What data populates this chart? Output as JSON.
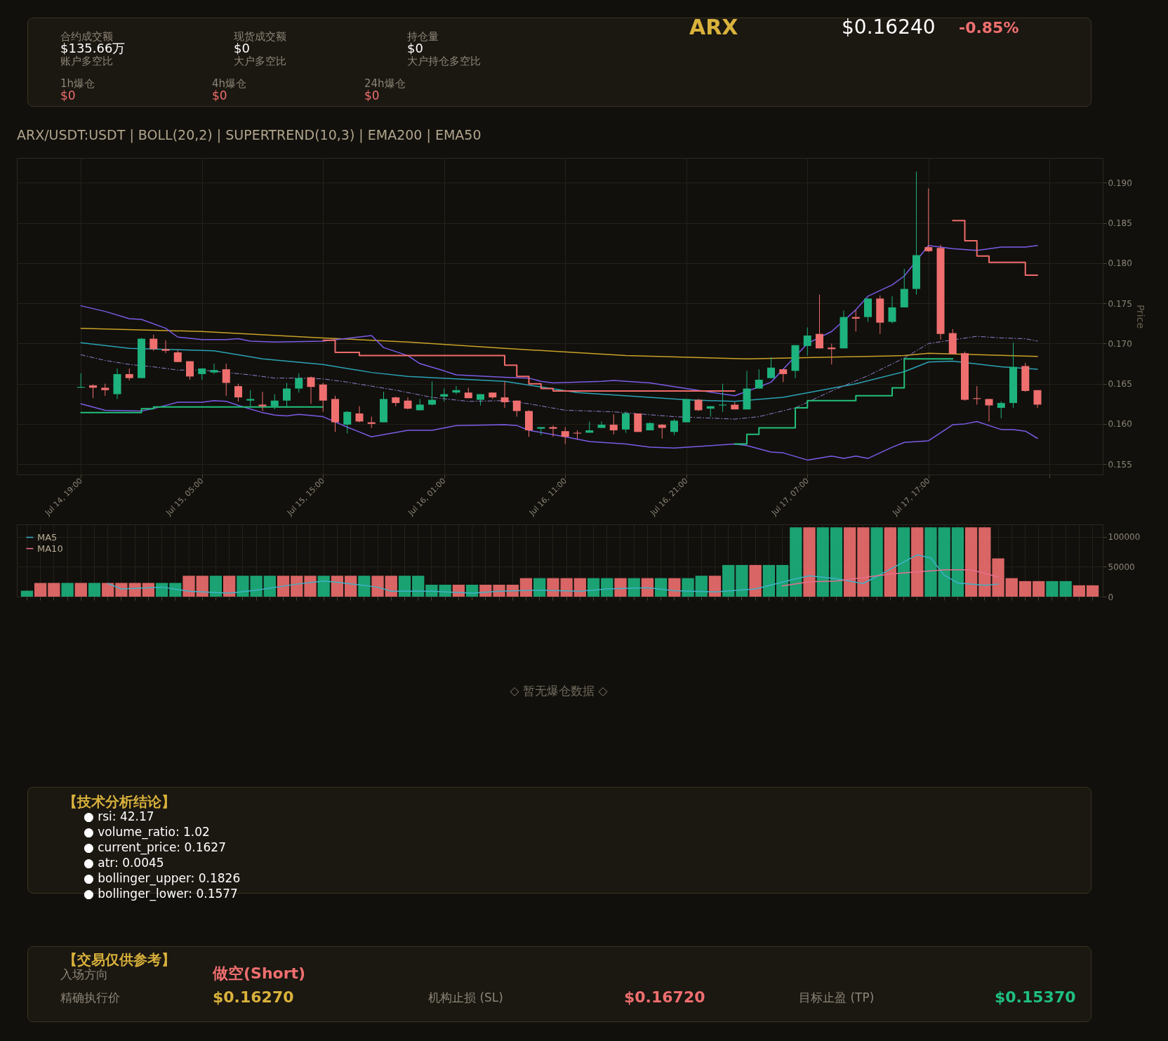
{
  "chart_data": [
    {
      "type": "other",
      "annotations": [
        "合约成交额",
        "$135.66万",
        "现货成交额",
        "$0",
        "持仓量",
        "$0",
        "账户多空比",
        "大户多空比",
        "大户持仓多空比",
        "1h爆仓",
        "$0",
        "4h爆仓",
        "$0",
        "24h爆仓",
        "$0",
        "ARX",
        "$0.16240",
        "-0.85%"
      ]
    },
    {
      "type": "candlestick",
      "title": "ARX/USDT:USDT | BOLL(20,2) | SUPERTREND(10,3) | EMA200 | EMA50",
      "ylabel": "Price",
      "grid": true,
      "x": [
        "--07-14T19:00",
        "--07-14T20:00",
        "--07-14T21:00",
        "--07-14T22:00",
        "--07-14T23:00",
        "--07-15T00:00",
        "--07-15T01:00",
        "--07-15T02:00",
        "--07-15T03:00",
        "--07-15T04:00",
        "--07-15T05:00",
        "--07-15T06:00",
        "--07-15T07:00",
        "--07-15T08:00",
        "--07-15T09:00",
        "--07-15T10:00",
        "--07-15T11:00",
        "--07-15T12:00",
        "--07-15T13:00",
        "--07-15T14:00",
        "--07-15T15:00",
        "--07-15T16:00",
        "--07-15T17:00",
        "--07-15T18:00",
        "--07-15T19:00",
        "--07-15T20:00",
        "--07-15T21:00",
        "--07-15T22:00",
        "--07-15T23:00",
        "--07-16T00:00",
        "--07-16T01:00",
        "--07-16T02:00",
        "--07-16T03:00",
        "--07-16T04:00",
        "--07-16T05:00",
        "--07-16T06:00",
        "--07-16T07:00",
        "--07-16T08:00",
        "--07-16T09:00",
        "--07-16T10:00",
        "--07-16T11:00",
        "--07-16T12:00",
        "--07-16T13:00",
        "--07-16T14:00",
        "--07-16T15:00",
        "--07-16T16:00",
        "--07-16T17:00",
        "--07-16T18:00",
        "--07-16T19:00",
        "--07-16T20:00",
        "--07-16T21:00",
        "--07-16T22:00",
        "--07-16T23:00",
        "--07-17T00:00",
        "--07-17T01:00",
        "--07-17T02:00",
        "--07-17T03:00",
        "--07-17T04:00",
        "--07-17T05:00",
        "--07-17T06:00",
        "--07-17T07:00",
        "--07-17T08:00",
        "--07-17T09:00",
        "--07-17T10:00",
        "--07-17T11:00",
        "--07-17T12:00",
        "--07-17T13:00",
        "--07-17T14:00",
        "--07-17T15:00",
        "--07-17T16:00",
        "--07-17T17:00",
        "--07-17T18:00",
        "--07-17T19:00",
        "--07-17T20:00",
        "--07-17T21:00",
        "--07-17T22:00",
        "--07-17T23:00",
        "--07-18T00:00",
        "--07-18T01:00",
        "--07-18T02:00"
      ],
      "ohlc": [
        [
          0.1645,
          0.1663,
          0.1645,
          0.1646
        ],
        [
          0.1648,
          0.1649,
          0.1632,
          0.1645
        ],
        [
          0.1645,
          0.165,
          0.1635,
          0.1642
        ],
        [
          0.1637,
          0.1669,
          0.1631,
          0.1662
        ],
        [
          0.1662,
          0.1669,
          0.1654,
          0.1657
        ],
        [
          0.1657,
          0.1707,
          0.1657,
          0.1706
        ],
        [
          0.1706,
          0.1711,
          0.1691,
          0.1693
        ],
        [
          0.1693,
          0.1704,
          0.1688,
          0.1691
        ],
        [
          0.1689,
          0.1692,
          0.1677,
          0.1677
        ],
        [
          0.1678,
          0.1678,
          0.1655,
          0.1659
        ],
        [
          0.1662,
          0.1669,
          0.1655,
          0.1669
        ],
        [
          0.1664,
          0.1675,
          0.1662,
          0.1667
        ],
        [
          0.1668,
          0.1675,
          0.1635,
          0.1651
        ],
        [
          0.1647,
          0.165,
          0.1628,
          0.1633
        ],
        [
          0.1629,
          0.1642,
          0.1622,
          0.1631
        ],
        [
          0.1624,
          0.164,
          0.1616,
          0.1622
        ],
        [
          0.1622,
          0.1637,
          0.1618,
          0.1629
        ],
        [
          0.1629,
          0.1651,
          0.162,
          0.1644
        ],
        [
          0.1644,
          0.1663,
          0.1639,
          0.1657
        ],
        [
          0.1658,
          0.1659,
          0.1625,
          0.1646
        ],
        [
          0.1649,
          0.1651,
          0.1615,
          0.1629
        ],
        [
          0.1631,
          0.1635,
          0.159,
          0.1602
        ],
        [
          0.1599,
          0.1616,
          0.1588,
          0.1615
        ],
        [
          0.1613,
          0.1622,
          0.1602,
          0.1603
        ],
        [
          0.1602,
          0.1609,
          0.1595,
          0.16
        ],
        [
          0.1602,
          0.164,
          0.1602,
          0.1631
        ],
        [
          0.1633,
          0.1634,
          0.1622,
          0.1626
        ],
        [
          0.1629,
          0.1633,
          0.1618,
          0.1619
        ],
        [
          0.1617,
          0.1631,
          0.1617,
          0.1624
        ],
        [
          0.1624,
          0.1653,
          0.1623,
          0.163
        ],
        [
          0.1634,
          0.1644,
          0.1628,
          0.1637
        ],
        [
          0.1639,
          0.1647,
          0.1637,
          0.1642
        ],
        [
          0.1639,
          0.1645,
          0.1632,
          0.1632
        ],
        [
          0.163,
          0.1637,
          0.1623,
          0.1637
        ],
        [
          0.1639,
          0.1639,
          0.1631,
          0.1633
        ],
        [
          0.1633,
          0.1653,
          0.162,
          0.1627
        ],
        [
          0.1629,
          0.1629,
          0.1609,
          0.1616
        ],
        [
          0.1616,
          0.1617,
          0.1584,
          0.1592
        ],
        [
          0.1594,
          0.1596,
          0.1586,
          0.1596
        ],
        [
          0.1596,
          0.1598,
          0.1584,
          0.1594
        ],
        [
          0.1591,
          0.1596,
          0.1575,
          0.1584
        ],
        [
          0.1589,
          0.1592,
          0.1581,
          0.1588
        ],
        [
          0.1589,
          0.1603,
          0.1589,
          0.1592
        ],
        [
          0.1595,
          0.1603,
          0.1595,
          0.1599
        ],
        [
          0.1599,
          0.1612,
          0.1587,
          0.1592
        ],
        [
          0.1593,
          0.1615,
          0.1589,
          0.1613
        ],
        [
          0.1613,
          0.1613,
          0.159,
          0.159
        ],
        [
          0.1592,
          0.1602,
          0.1592,
          0.1601
        ],
        [
          0.1599,
          0.16,
          0.1582,
          0.1595
        ],
        [
          0.159,
          0.1606,
          0.1586,
          0.1604
        ],
        [
          0.1602,
          0.1631,
          0.1602,
          0.1631
        ],
        [
          0.163,
          0.1631,
          0.1616,
          0.1617
        ],
        [
          0.1619,
          0.1622,
          0.1609,
          0.1622
        ],
        [
          0.1623,
          0.165,
          0.1615,
          0.1624
        ],
        [
          0.1624,
          0.1627,
          0.1618,
          0.1618
        ],
        [
          0.1618,
          0.1666,
          0.1618,
          0.1644
        ],
        [
          0.1644,
          0.1668,
          0.1644,
          0.1655
        ],
        [
          0.1657,
          0.1683,
          0.1657,
          0.167
        ],
        [
          0.1668,
          0.1668,
          0.1652,
          0.1662
        ],
        [
          0.1666,
          0.1698,
          0.1657,
          0.1698
        ],
        [
          0.1697,
          0.172,
          0.1685,
          0.171
        ],
        [
          0.1712,
          0.1761,
          0.1694,
          0.1694
        ],
        [
          0.1695,
          0.17,
          0.1674,
          0.1693
        ],
        [
          0.1694,
          0.1741,
          0.1694,
          0.1733
        ],
        [
          0.1733,
          0.1742,
          0.1715,
          0.1731
        ],
        [
          0.1733,
          0.1756,
          0.1727,
          0.1756
        ],
        [
          0.1756,
          0.176,
          0.1712,
          0.1726
        ],
        [
          0.1727,
          0.1759,
          0.1725,
          0.1745
        ],
        [
          0.1745,
          0.1793,
          0.1745,
          0.1768
        ],
        [
          0.1768,
          0.1914,
          0.1761,
          0.181
        ],
        [
          0.182,
          0.1893,
          0.1814,
          0.1815
        ],
        [
          0.1819,
          0.1823,
          0.1705,
          0.1712
        ],
        [
          0.1713,
          0.1718,
          0.1687,
          0.1687
        ],
        [
          0.1688,
          0.169,
          0.1629,
          0.163
        ],
        [
          0.1632,
          0.1647,
          0.1624,
          0.1631
        ],
        [
          0.1631,
          0.1631,
          0.1603,
          0.1623
        ],
        [
          0.162,
          0.1628,
          0.1607,
          0.1626
        ],
        [
          0.1626,
          0.1701,
          0.162,
          0.1671
        ],
        [
          0.1672,
          0.1676,
          0.164,
          0.1641
        ],
        [
          0.1642,
          0.1642,
          0.162,
          0.1624
        ]
      ],
      "colors": [
        "#1db27e",
        "#ef6f6f",
        "#ef6f6f",
        "#1db27e",
        "#ef6f6f",
        "#1db27e",
        "#ef6f6f",
        "#ef6f6f",
        "#ef6f6f",
        "#ef6f6f",
        "#1db27e",
        "#1db27e",
        "#ef6f6f",
        "#ef6f6f",
        "#1db27e",
        "#ef6f6f",
        "#1db27e",
        "#1db27e",
        "#1db27e",
        "#ef6f6f",
        "#ef6f6f",
        "#ef6f6f",
        "#1db27e",
        "#ef6f6f",
        "#ef6f6f",
        "#1db27e",
        "#ef6f6f",
        "#ef6f6f",
        "#1db27e",
        "#1db27e",
        "#1db27e",
        "#1db27e",
        "#ef6f6f",
        "#1db27e",
        "#ef6f6f",
        "#ef6f6f",
        "#ef6f6f",
        "#ef6f6f",
        "#1db27e",
        "#ef6f6f",
        "#ef6f6f",
        "#ef6f6f",
        "#1db27e",
        "#1db27e",
        "#ef6f6f",
        "#1db27e",
        "#ef6f6f",
        "#1db27e",
        "#ef6f6f",
        "#1db27e",
        "#1db27e",
        "#ef6f6f",
        "#1db27e",
        "#1db27e",
        "#ef6f6f",
        "#1db27e",
        "#1db27e",
        "#1db27e",
        "#ef6f6f",
        "#1db27e",
        "#1db27e",
        "#ef6f6f",
        "#ef6f6f",
        "#1db27e",
        "#ef6f6f",
        "#1db27e",
        "#ef6f6f",
        "#1db27e",
        "#1db27e",
        "#1db27e",
        "#ef6f6f",
        "#ef6f6f",
        "#ef6f6f",
        "#ef6f6f",
        "#ef6f6f",
        "#ef6f6f",
        "#1db27e",
        "#1db27e",
        "#ef6f6f",
        "#ef6f6f"
      ],
      "series": [
        {
          "type": "line",
          "color": "#c9a227",
          "x": [
            "--07-14T19:00",
            "--07-15T05:00",
            "--07-15T15:00",
            "--07-15T22:00",
            "--07-16T06:00",
            "--07-16T16:00",
            "--07-17T02:00",
            "--07-17T15:00",
            "--07-17T17:00",
            "--07-18T02:00"
          ],
          "values": [
            0.1719,
            0.1715,
            0.1707,
            0.1702,
            0.1694,
            0.1685,
            0.1681,
            0.1685,
            0.1688,
            0.1684
          ]
        },
        {
          "type": "line",
          "color": "#2aa3b5",
          "x": [
            "--07-14T19:00",
            "--07-14T23:00",
            "--07-15T06:00",
            "--07-15T10:00",
            "--07-15T15:00",
            "--07-15T19:00",
            "--07-15T22:00",
            "--07-16T06:00",
            "--07-16T12:00",
            "--07-16T21:00",
            "--07-17T01:00",
            "--07-17T05:00",
            "--07-17T11:00",
            "--07-17T15:00",
            "--07-17T17:00",
            "--07-17T19:00",
            "--07-17T23:00",
            "--07-18T02:00"
          ],
          "values": [
            0.1701,
            0.1694,
            0.1691,
            0.1681,
            0.1674,
            0.1664,
            0.1659,
            0.1653,
            0.1639,
            0.163,
            0.1628,
            0.1633,
            0.165,
            0.1665,
            0.1677,
            0.1678,
            0.1671,
            0.1668
          ]
        },
        {
          "type": "line",
          "color": "#7b5ce8",
          "x": [
            "--07-14T19:00",
            "--07-14T21:00",
            "--07-14T23:00",
            "--07-15T00:00",
            "--07-15T02:00",
            "--07-15T03:00",
            "--07-15T05:00",
            "--07-15T07:00",
            "--07-15T08:00",
            "--07-15T09:00",
            "--07-15T11:00",
            "--07-15T15:00",
            "--07-15T19:00",
            "--07-15T20:00",
            "--07-15T22:00",
            "--07-15T23:00",
            "--07-16T01:00",
            "--07-16T02:00",
            "--07-16T06:00",
            "--07-16T08:00",
            "--07-16T09:00",
            "--07-16T10:00",
            "--07-16T14:00",
            "--07-16T15:00",
            "--07-16T18:00",
            "--07-16T21:00",
            "--07-17T01:00",
            "--07-17T03:00",
            "--07-17T04:00",
            "--07-17T07:00",
            "--07-17T09:00",
            "--07-17T11:00",
            "--07-17T12:00",
            "--07-17T14:00",
            "--07-17T15:00",
            "--07-17T17:00",
            "--07-17T19:00",
            "--07-17T21:00",
            "--07-17T23:00",
            "--07-18T01:00",
            "--07-18T02:00"
          ],
          "values": [
            0.1747,
            0.174,
            0.1731,
            0.173,
            0.1719,
            0.1708,
            0.1705,
            0.1705,
            0.1706,
            0.1703,
            0.1702,
            0.1703,
            0.171,
            0.1695,
            0.1685,
            0.1675,
            0.1666,
            0.1661,
            0.1658,
            0.1657,
            0.1653,
            0.1651,
            0.1653,
            0.1654,
            0.1651,
            0.1644,
            0.1635,
            0.1646,
            0.1652,
            0.17,
            0.1715,
            0.1742,
            0.1759,
            0.1773,
            0.1784,
            0.1822,
            0.1818,
            0.1816,
            0.182,
            0.182,
            0.1822
          ]
        },
        {
          "type": "line",
          "color": "#7b5ce8",
          "x": [
            "--07-14T19:00",
            "--07-14T21:00",
            "--07-15T00:00",
            "--07-15T01:00",
            "--07-15T03:00",
            "--07-15T05:00",
            "--07-15T06:00",
            "--07-15T07:00",
            "--07-15T08:00",
            "--07-15T10:00",
            "--07-15T11:00",
            "--07-15T12:00",
            "--07-15T13:00",
            "--07-15T15:00",
            "--07-15T17:00",
            "--07-15T19:00",
            "--07-15T22:00",
            "--07-16T00:00",
            "--07-16T02:00",
            "--07-16T06:00",
            "--07-16T07:00",
            "--07-16T08:00",
            "--07-16T11:00",
            "--07-16T13:00",
            "--07-16T16:00",
            "--07-16T18:00",
            "--07-16T20:00",
            "--07-16T22:00",
            "--07-17T01:00",
            "--07-17T02:00",
            "--07-17T04:00",
            "--07-17T05:00",
            "--07-17T07:00",
            "--07-17T09:00",
            "--07-17T10:00",
            "--07-17T11:00",
            "--07-17T12:00",
            "--07-17T14:00",
            "--07-17T15:00",
            "--07-17T17:00",
            "--07-17T19:00",
            "--07-17T20:00",
            "--07-17T21:00",
            "--07-17T23:00",
            "--07-18T00:00",
            "--07-18T01:00",
            "--07-18T02:00"
          ],
          "values": [
            0.1625,
            0.1617,
            0.1616,
            0.1619,
            0.1627,
            0.1627,
            0.1629,
            0.1628,
            0.1623,
            0.1614,
            0.1611,
            0.161,
            0.1612,
            0.1609,
            0.1596,
            0.1584,
            0.1592,
            0.1592,
            0.1598,
            0.1599,
            0.1598,
            0.1592,
            0.1584,
            0.1578,
            0.1575,
            0.1571,
            0.157,
            0.1572,
            0.1575,
            0.1573,
            0.1565,
            0.1564,
            0.1555,
            0.156,
            0.1557,
            0.156,
            0.1557,
            0.1571,
            0.1577,
            0.1579,
            0.1599,
            0.16,
            0.1603,
            0.1593,
            0.1593,
            0.1591,
            0.1582
          ]
        },
        {
          "type": "line",
          "color": "#8f80d0",
          "line_style": "dashed",
          "x": [
            "--07-14T19:00",
            "--07-14T21:00",
            "--07-14T23:00",
            "--07-15T01:00",
            "--07-15T03:00",
            "--07-15T05:00",
            "--07-15T09:00",
            "--07-15T11:00",
            "--07-15T13:00",
            "--07-15T15:00",
            "--07-15T17:00",
            "--07-15T19:00",
            "--07-15T21:00",
            "--07-16T00:00",
            "--07-16T03:00",
            "--07-16T06:00",
            "--07-16T08:00",
            "--07-16T11:00",
            "--07-16T15:00",
            "--07-16T20:00",
            "--07-17T01:00",
            "--07-17T03:00",
            "--07-17T06:00",
            "--07-17T09:00",
            "--07-17T12:00",
            "--07-17T15:00",
            "--07-17T17:00",
            "--07-17T21:00",
            "--07-17T23:00",
            "--07-18T01:00",
            "--07-18T02:00"
          ],
          "values": [
            0.1686,
            0.1679,
            0.1674,
            0.1671,
            0.1667,
            0.1667,
            0.1661,
            0.1657,
            0.1657,
            0.1656,
            0.1652,
            0.1647,
            0.1642,
            0.1633,
            0.1628,
            0.1629,
            0.1625,
            0.1617,
            0.1615,
            0.1609,
            0.1606,
            0.1609,
            0.162,
            0.1641,
            0.166,
            0.1682,
            0.17,
            0.1709,
            0.1707,
            0.1706,
            0.1703
          ]
        },
        {
          "type": "step",
          "color": "#22c07a",
          "x": [
            "--07-14T19:00",
            "--07-15T00:00",
            "--07-15T01:00",
            "--07-15T15:00"
          ],
          "values": [
            0.1614,
            0.1619,
            0.1621,
            0.1621
          ]
        },
        {
          "type": "step",
          "color": "#ef6b6b",
          "x": [
            "--07-15T15:00",
            "--07-15T16:00",
            "--07-15T18:00",
            "--07-16T06:00",
            "--07-16T07:00",
            "--07-16T08:00",
            "--07-16T09:00",
            "--07-16T10:00",
            "--07-17T01:00"
          ],
          "values": [
            0.1704,
            0.1689,
            0.1685,
            0.1673,
            0.1659,
            0.165,
            0.1644,
            0.1641,
            0.1641
          ]
        },
        {
          "type": "step",
          "color": "#22c07a",
          "x": [
            "--07-17T01:00",
            "--07-17T02:00",
            "--07-17T03:00",
            "--07-17T06:00",
            "--07-17T07:00",
            "--07-17T11:00",
            "--07-17T14:00",
            "--07-17T15:00",
            "--07-17T19:00"
          ],
          "values": [
            0.1575,
            0.1587,
            0.1595,
            0.162,
            0.1629,
            0.1635,
            0.1645,
            0.1681,
            0.1681
          ]
        },
        {
          "type": "step",
          "color": "#ef6b6b",
          "x": [
            "--07-17T19:00",
            "--07-17T20:00",
            "--07-17T21:00",
            "--07-17T22:00",
            "--07-18T01:00",
            "--07-18T02:00"
          ],
          "values": [
            0.1853,
            0.1828,
            0.1809,
            0.1801,
            0.1785,
            0.1785
          ]
        }
      ],
      "xlim": [
        "--07-14T14:00",
        "--07-18T07:06"
      ],
      "xticks": [
        {
          "value": "--07-14T19:00",
          "label": "Jul 14, 19:00"
        },
        {
          "value": "--07-15T05:00",
          "label": "Jul 15, 05:00"
        },
        {
          "value": "--07-15T15:00",
          "label": "Jul 15, 15:00"
        },
        {
          "value": "--07-16T01:00",
          "label": "Jul 16, 01:00"
        },
        {
          "value": "--07-16T11:00",
          "label": "Jul 16, 11:00"
        },
        {
          "value": "--07-16T21:00",
          "label": "Jul 16, 21:00"
        },
        {
          "value": "--07-17T07:00",
          "label": "Jul 17, 07:00"
        },
        {
          "value": "--07-17T17:00",
          "label": "Jul 17, 17:00"
        },
        {
          "value": "--07-18T03:00",
          "label": null
        }
      ],
      "ylim": [
        0.1537,
        0.1931
      ],
      "yticks": [
        0.155,
        {
          "value": 0.16,
          "label": "0.160"
        },
        0.165,
        {
          "value": 0.17,
          "label": "0.170"
        },
        0.175,
        {
          "value": 0.18,
          "label": "0.180"
        },
        0.185,
        {
          "value": 0.19,
          "label": "0.190"
        }
      ]
    },
    {
      "type": "bar",
      "grid": true,
      "legend": "top left",
      "tick_labels": "y",
      "categories": [
        null,
        null,
        null,
        null,
        null,
        null,
        null,
        null,
        null,
        null,
        null,
        null,
        null,
        null,
        null,
        null,
        null,
        null,
        null,
        null,
        null,
        null,
        null,
        null,
        null,
        null,
        null,
        null,
        null,
        null,
        null,
        null,
        null,
        null,
        null,
        null,
        null,
        null,
        null,
        null,
        null,
        null,
        null,
        null,
        null,
        null,
        null,
        null,
        null,
        null,
        null,
        null,
        null,
        null,
        null,
        null,
        null,
        null,
        null,
        null,
        null,
        null,
        null,
        null,
        null,
        null,
        null,
        null,
        null,
        null,
        null,
        null,
        null,
        null,
        null,
        null,
        null,
        null,
        null,
        null
      ],
      "series": [
        {
          "type": "bar",
          "values": [
            10000,
            23000,
            23000,
            23000,
            23000,
            23000,
            23000,
            23000,
            23000,
            23000,
            23000,
            23000,
            35000,
            35000,
            35000,
            35000,
            35000,
            35000,
            35000,
            35000,
            35000,
            35000,
            35000,
            35000,
            35000,
            35000,
            35000,
            35000,
            35000,
            35000,
            20000,
            20000,
            20000,
            20000,
            20000,
            20000,
            20000,
            31000,
            31000,
            31000,
            31000,
            31000,
            31000,
            31000,
            31000,
            31000,
            31000,
            31000,
            31000,
            31000,
            35000,
            35000,
            53000,
            53000,
            53000,
            53000,
            53000,
            116000,
            116000,
            116000,
            116000,
            116000,
            116000,
            116000,
            116000,
            116000,
            116000,
            116000,
            116000,
            116000,
            116000,
            116000,
            64000,
            31000,
            26000,
            26000,
            26000,
            26000,
            19000,
            19000
          ],
          "colors": [
            "#1db27e",
            "#ef6f6f",
            "#ef6f6f",
            "#1db27e",
            "#ef6f6f",
            "#1db27e",
            "#ef6f6f",
            "#ef6f6f",
            "#ef6f6f",
            "#ef6f6f",
            "#1db27e",
            "#1db27e",
            "#ef6f6f",
            "#ef6f6f",
            "#1db27e",
            "#ef6f6f",
            "#1db27e",
            "#1db27e",
            "#1db27e",
            "#ef6f6f",
            "#ef6f6f",
            "#ef6f6f",
            "#1db27e",
            "#ef6f6f",
            "#ef6f6f",
            "#1db27e",
            "#ef6f6f",
            "#ef6f6f",
            "#1db27e",
            "#1db27e",
            "#1db27e",
            "#1db27e",
            "#ef6f6f",
            "#1db27e",
            "#ef6f6f",
            "#ef6f6f",
            "#ef6f6f",
            "#ef6f6f",
            "#1db27e",
            "#ef6f6f",
            "#ef6f6f",
            "#ef6f6f",
            "#1db27e",
            "#1db27e",
            "#ef6f6f",
            "#1db27e",
            "#ef6f6f",
            "#1db27e",
            "#ef6f6f",
            "#1db27e",
            "#1db27e",
            "#ef6f6f",
            "#1db27e",
            "#1db27e",
            "#ef6f6f",
            "#1db27e",
            "#1db27e",
            "#1db27e",
            "#ef6f6f",
            "#1db27e",
            "#1db27e",
            "#ef6f6f",
            "#ef6f6f",
            "#1db27e",
            "#ef6f6f",
            "#1db27e",
            "#ef6f6f",
            "#1db27e",
            "#1db27e",
            "#1db27e",
            "#ef6f6f",
            "#ef6f6f",
            "#ef6f6f",
            "#ef6f6f",
            "#ef6f6f",
            "#ef6f6f",
            "#1db27e",
            "#1db27e",
            "#ef6f6f",
            "#ef6f6f"
          ]
        },
        {
          "type": "line",
          "name": "MA5",
          "color": "#3fb3c8",
          "values": [
            null,
            null,
            null,
            null,
            null,
            null,
            22000,
            13000,
            null,
            null,
            16000,
            null,
            9000,
            null,
            null,
            6000,
            null,
            11000,
            null,
            null,
            21000,
            null,
            26000,
            24000,
            null,
            null,
            16000,
            9000,
            null,
            null,
            9000,
            null,
            null,
            6000,
            null,
            9000,
            null,
            null,
            11000,
            null,
            null,
            9000,
            null,
            13000,
            null,
            null,
            15000,
            null,
            10000,
            null,
            null,
            8000,
            null,
            null,
            13000,
            null,
            null,
            30000,
            35000,
            null,
            30000,
            null,
            22000,
            null,
            46000,
            null,
            70000,
            65000,
            36000,
            23000,
            null,
            19000,
            21000,
            null,
            null,
            null,
            null,
            null,
            null,
            null
          ]
        },
        {
          "type": "line",
          "name": "MA10",
          "color": "#e86f8f",
          "values": [
            null,
            null,
            null,
            null,
            null,
            null,
            null,
            null,
            null,
            null,
            null,
            null,
            null,
            null,
            null,
            null,
            null,
            null,
            null,
            null,
            null,
            null,
            null,
            null,
            null,
            null,
            null,
            null,
            null,
            null,
            null,
            null,
            null,
            null,
            null,
            null,
            null,
            null,
            null,
            null,
            null,
            null,
            null,
            null,
            null,
            null,
            null,
            null,
            null,
            null,
            null,
            null,
            null,
            null,
            null,
            null,
            18000,
            null,
            25000,
            null,
            26000,
            null,
            null,
            null,
            38000,
            null,
            null,
            null,
            45000,
            null,
            45000,
            null,
            33000,
            null,
            null,
            null,
            null,
            null,
            null,
            null
          ]
        }
      ],
      "ylim": [
        0,
        121000
      ],
      "yticks": [
        0,
        50000,
        100000
      ]
    },
    {
      "type": "other",
      "annotations": [
        "◇ 暂无爆仓数据 ◇"
      ]
    },
    {
      "type": "other",
      "title": "【技术分析结论】",
      "annotations": [
        "● rsi: 42.17",
        "● volume_ratio: 1.02",
        "● current_price: 0.1627",
        "● atr: 0.0045",
        "● bollinger_upper: 0.1826",
        "● bollinger_lower: 0.1577"
      ]
    },
    {
      "type": "other",
      "title": "【交易仅供参考】",
      "annotations": [
        "入场方向",
        "做空(Short)",
        "精确执行价",
        "$0.16270",
        "机构止损 (SL)",
        "$0.16720",
        "目标止盈 (TP)",
        "$0.15370"
      ]
    }
  ]
}
